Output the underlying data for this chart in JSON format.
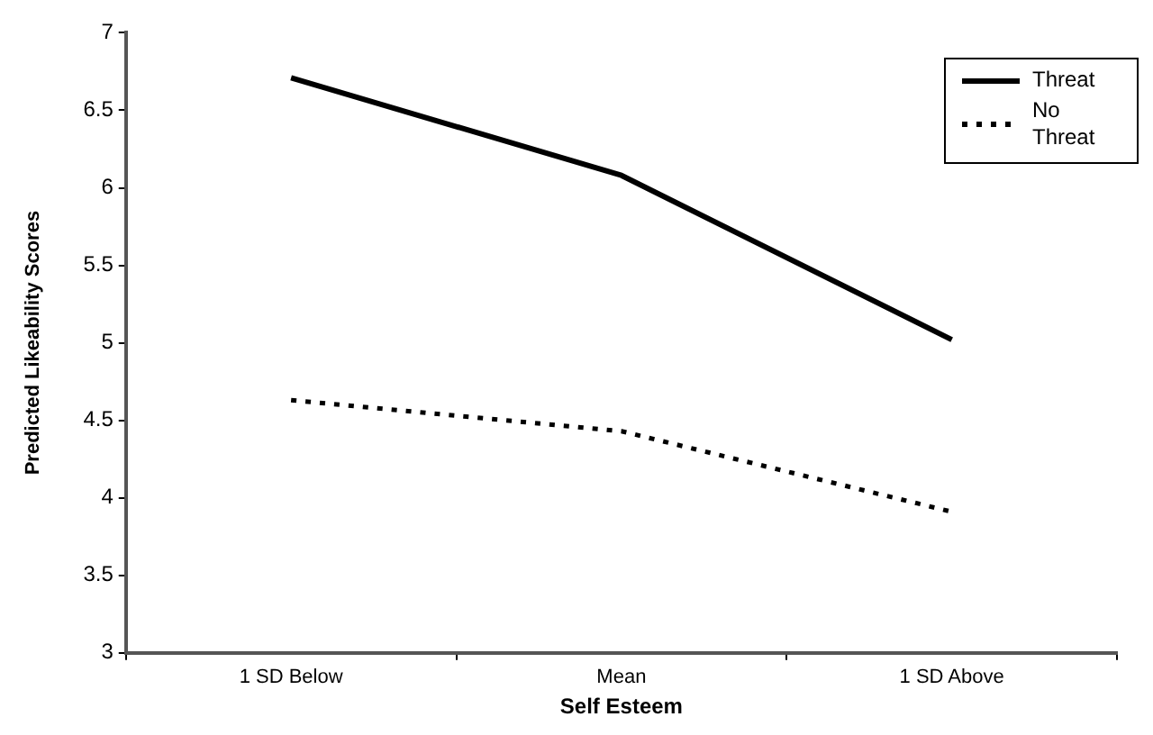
{
  "chart_data": {
    "type": "line",
    "xlabel": "Self Esteem",
    "ylabel": "Predicted Likeability Scores",
    "categories": [
      "1 SD Below",
      "Mean",
      "1 SD Above"
    ],
    "series": [
      {
        "name": "Threat",
        "color": "#000000",
        "values": [
          6.71,
          6.08,
          5.02
        ],
        "line_style": "solid"
      },
      {
        "name": "No Threat",
        "color": "#000000",
        "values": [
          4.63,
          4.43,
          3.91
        ],
        "line_style": "dotted"
      }
    ],
    "ylim": [
      3,
      7
    ],
    "yticks": [
      3,
      3.5,
      4,
      4.5,
      5,
      5.5,
      6,
      6.5,
      7
    ],
    "grid": false,
    "legend": "top right",
    "marker": "none"
  }
}
